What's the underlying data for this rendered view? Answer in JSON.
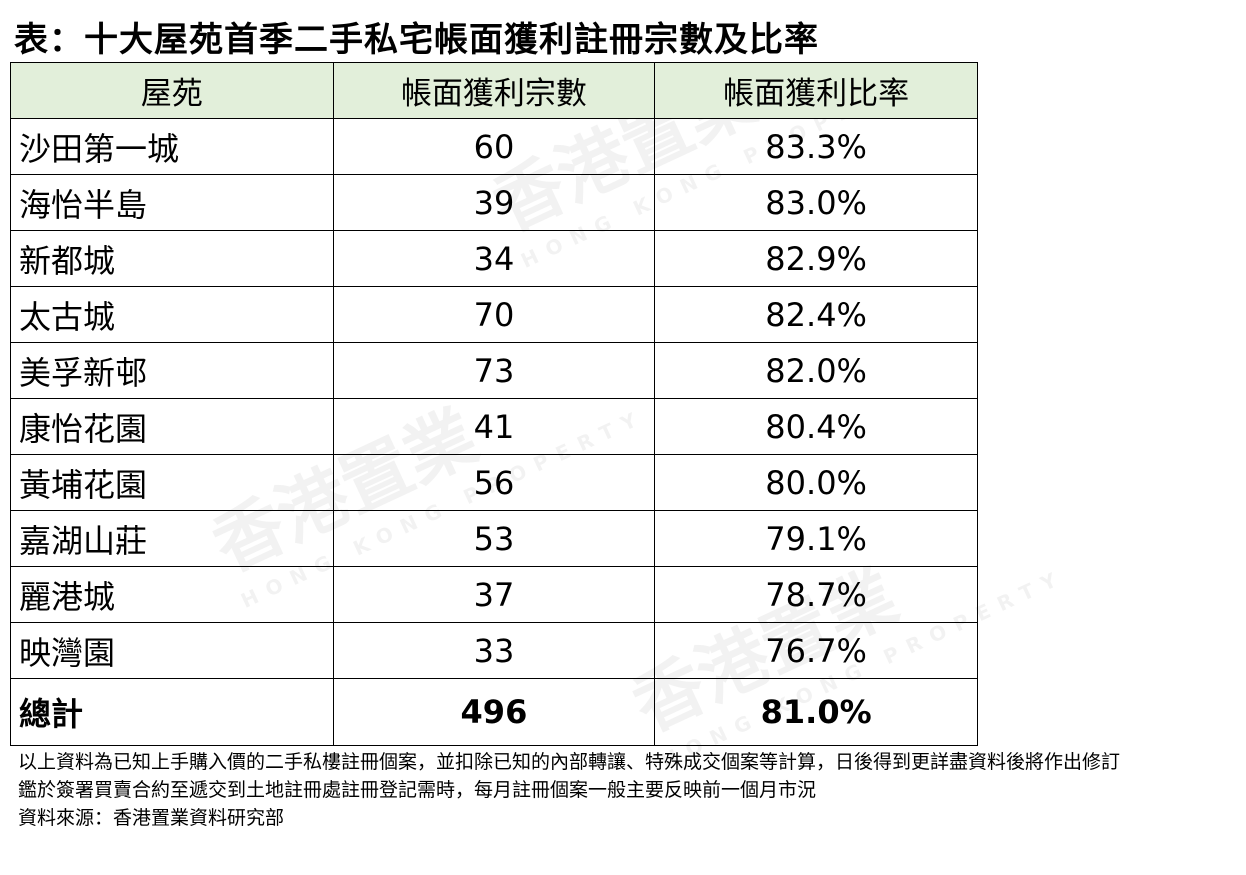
{
  "title": "表：十大屋苑首季二手私宅帳面獲利註冊宗數及比率",
  "table": {
    "headers": [
      "屋苑",
      "帳面獲利宗數",
      "帳面獲利比率"
    ],
    "rows": [
      [
        "沙田第一城",
        "60",
        "83.3%"
      ],
      [
        "海怡半島",
        "39",
        "83.0%"
      ],
      [
        "新都城",
        "34",
        "82.9%"
      ],
      [
        "太古城",
        "70",
        "82.4%"
      ],
      [
        "美孚新邨",
        "73",
        "82.0%"
      ],
      [
        "康怡花園",
        "41",
        "80.4%"
      ],
      [
        "黃埔花園",
        "56",
        "80.0%"
      ],
      [
        "嘉湖山莊",
        "53",
        "79.1%"
      ],
      [
        "麗港城",
        "37",
        "78.7%"
      ],
      [
        "映灣園",
        "33",
        "76.7%"
      ]
    ],
    "total": [
      "總計",
      "496",
      "81.0%"
    ]
  },
  "notes": [
    "以上資料為已知上手購入價的二手私樓註冊個案，並扣除已知的內部轉讓、特殊成交個案等計算，日後得到更詳盡資料後將作出修訂",
    "鑑於簽署買賣合約至遞交到土地註冊處註冊登記需時，每月註冊個案一般主要反映前一個月市況",
    "資料來源：香港置業資料研究部"
  ],
  "watermark": {
    "name": "香港置業",
    "sub": "HONG KONG PROPERTY"
  },
  "colors": {
    "header_bg": "#e2efda"
  }
}
